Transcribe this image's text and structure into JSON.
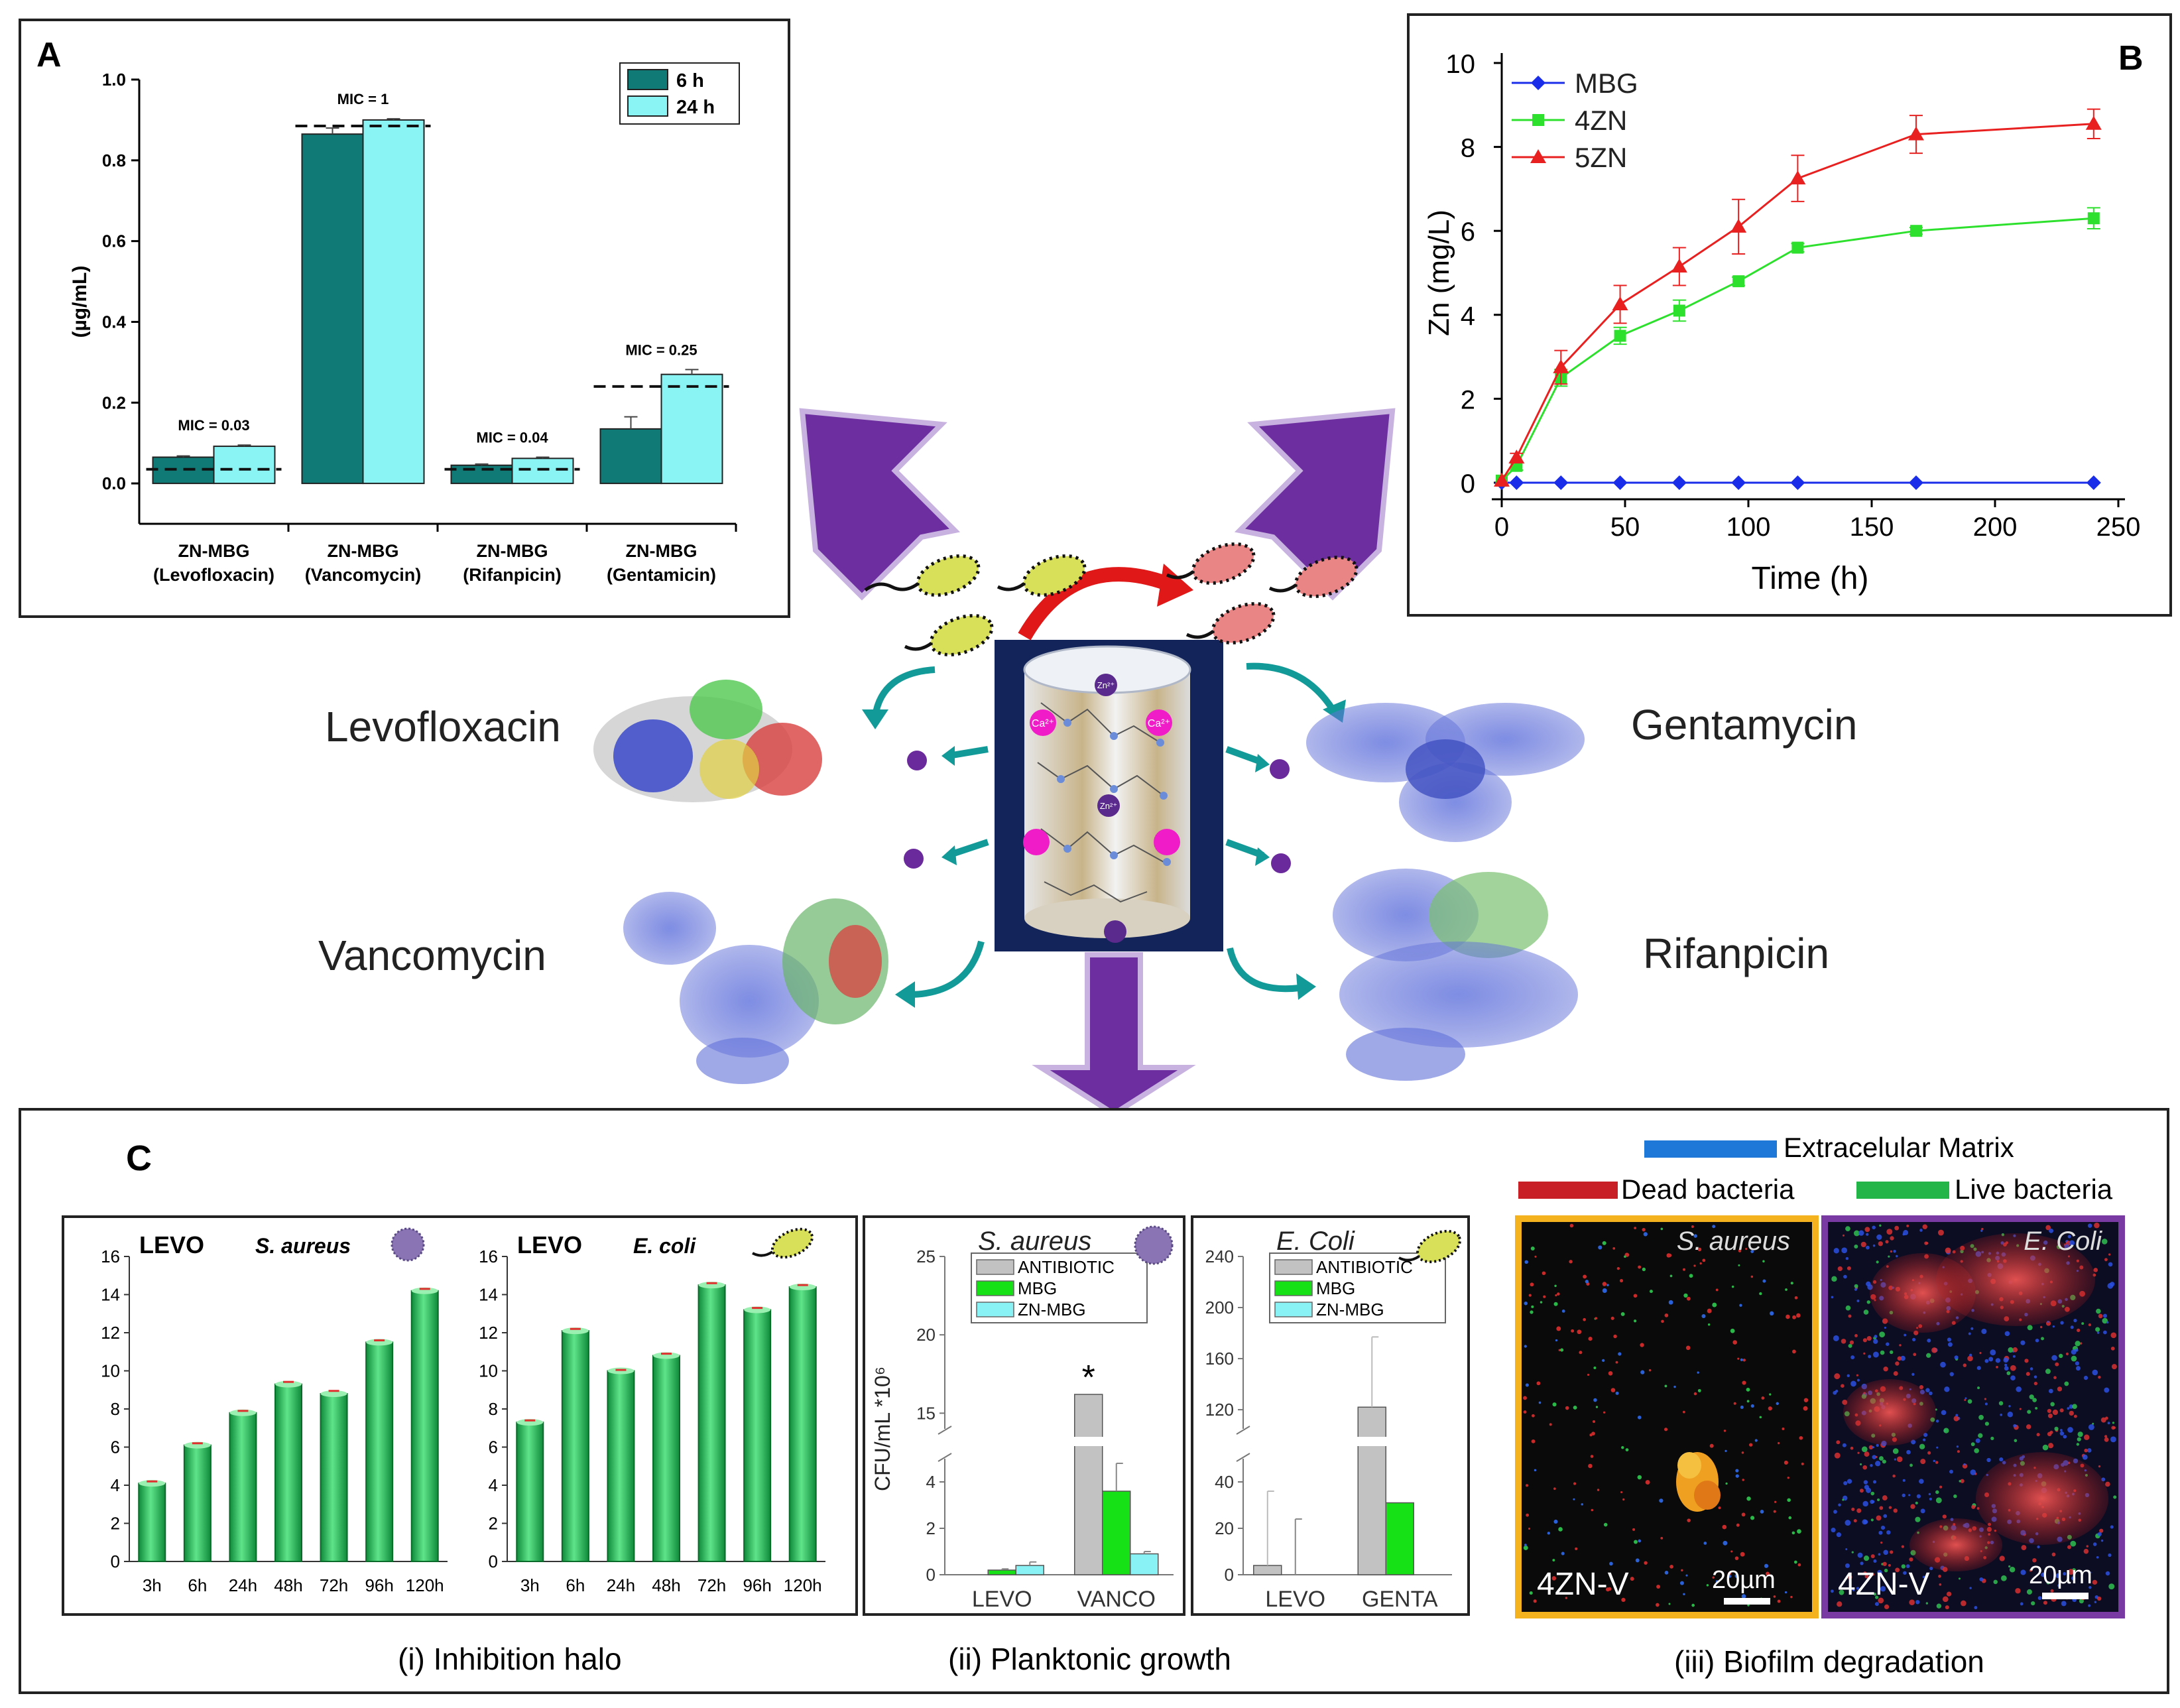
{
  "colors": {
    "teal_dark": "#0f7a76",
    "cyan": "#8af4f4",
    "arrow_purple": "#6d2fa0",
    "teal_arrow": "#129a98",
    "mbg_blue": "#1a2de8",
    "zn4_green": "#2ee02e",
    "zn5_red": "#e82020",
    "bar_green": "#33c85a",
    "antibiotic_gray": "#c2c2c2",
    "mbg_green": "#16e016",
    "znmbg_cyan": "#88f2f5",
    "panel_yellow": "#f3b21e",
    "panel_purple": "#7a3aa4",
    "ecm_blue": "#1e78d8",
    "dead_red": "#c81f26",
    "live_green": "#23b548"
  },
  "labels": {
    "panel_a": "A",
    "panel_b": "B",
    "panel_c": "C",
    "levofloxacin": "Levofloxacin",
    "gentamycin": "Gentamycin",
    "vancomycin": "Vancomycin",
    "rifanpicin": "Rifanpicin",
    "ion_ca": "Ca²⁺",
    "ion_zn": "Zn²⁺",
    "caption_i": "(i) Inhibition halo",
    "caption_ii": "(ii) Planktonic growth",
    "caption_iii": "(iii) Biofilm degradation",
    "legend_ecm": "Extracelular Matrix",
    "legend_dead": "Dead bacteria",
    "legend_live": "Live bacteria",
    "micro_left_title": "S. aureus",
    "micro_right_title": "E. Coli",
    "micro_label": "4ZN-V",
    "scale_bar": "20µm"
  },
  "chart_data": [
    {
      "id": "A",
      "type": "bar",
      "title": "",
      "xlabel": "",
      "ylabel": "(µg/mL)",
      "ylim": [
        -0.1,
        1.0
      ],
      "yticks": [
        "0.0",
        "0.2",
        "0.4",
        "0.6",
        "0.8",
        "1.0"
      ],
      "categories": [
        "ZN-MBG (Levofloxacin)",
        "ZN-MBG (Vancomycin)",
        "ZN-MBG (Rifanpicin)",
        "ZN-MBG (Gentamicin)"
      ],
      "category_lines": [
        [
          "ZN-MBG",
          "(Levofloxacin)"
        ],
        [
          "ZN-MBG",
          "(Vancomycin)"
        ],
        [
          "ZN-MBG",
          "(Rifanpicin)"
        ],
        [
          "ZN-MBG",
          "(Gentamicin)"
        ]
      ],
      "series": [
        {
          "name": "6 h",
          "values": [
            0.065,
            0.865,
            0.045,
            0.135
          ],
          "errors": [
            0.003,
            0.015,
            0.003,
            0.03
          ]
        },
        {
          "name": "24 h",
          "values": [
            0.092,
            0.9,
            0.062,
            0.27
          ],
          "errors": [
            0.003,
            0.003,
            0.003,
            0.012
          ]
        }
      ],
      "mic_values": [
        0.03,
        1,
        0.04,
        0.25
      ],
      "mic_line_levels": [
        0.035,
        0.885,
        0.035,
        0.24
      ],
      "mic_labels": [
        "MIC = 0.03",
        "MIC = 1",
        "MIC = 0.04",
        "MIC = 0.25"
      ],
      "legend_position": "top-right"
    },
    {
      "id": "B",
      "type": "line",
      "title": "",
      "xlabel": "Time (h)",
      "ylabel": "Zn (mg/L)",
      "xlim": [
        0,
        250
      ],
      "ylim": [
        0,
        10
      ],
      "xticks": [
        0,
        50,
        100,
        150,
        200,
        250
      ],
      "yticks": [
        0,
        2,
        4,
        6,
        8,
        10
      ],
      "x": [
        0,
        6,
        24,
        48,
        72,
        96,
        120,
        168,
        240
      ],
      "series": [
        {
          "name": "MBG",
          "values": [
            0,
            0,
            0,
            0,
            0,
            0,
            0,
            0,
            0
          ],
          "errors": [
            0,
            0,
            0,
            0,
            0,
            0,
            0,
            0,
            0
          ]
        },
        {
          "name": "4ZN",
          "values": [
            0.05,
            0.4,
            2.5,
            3.5,
            4.1,
            4.8,
            5.6,
            6.0,
            6.3
          ],
          "errors": [
            0.05,
            0.1,
            0.2,
            0.2,
            0.25,
            0.1,
            0.1,
            0.08,
            0.25
          ]
        },
        {
          "name": "5ZN",
          "values": [
            0.05,
            0.6,
            2.75,
            4.25,
            5.15,
            6.1,
            7.25,
            8.3,
            8.55
          ],
          "errors": [
            0.05,
            0.1,
            0.4,
            0.45,
            0.45,
            0.65,
            0.55,
            0.45,
            0.35
          ]
        }
      ],
      "legend_position": "top-left"
    },
    {
      "id": "C-i-left",
      "type": "bar",
      "title": "LEVO",
      "organism": "S. aureus",
      "ylim": [
        0,
        16
      ],
      "yticks": [
        0,
        2,
        4,
        6,
        8,
        10,
        12,
        14,
        16
      ],
      "categories": [
        "3h",
        "6h",
        "24h",
        "48h",
        "72h",
        "96h",
        "120h"
      ],
      "values": [
        4.1,
        6.1,
        7.8,
        9.3,
        8.8,
        11.5,
        14.2
      ],
      "errors": [
        0.1,
        0.1,
        0.1,
        0.12,
        0.15,
        0.1,
        0.1
      ]
    },
    {
      "id": "C-i-right",
      "type": "bar",
      "title": "LEVO",
      "organism": "E. coli",
      "ylim": [
        0,
        16
      ],
      "yticks": [
        0,
        2,
        4,
        6,
        8,
        10,
        12,
        14,
        16
      ],
      "categories": [
        "3h",
        "6h",
        "24h",
        "48h",
        "72h",
        "96h",
        "120h"
      ],
      "values": [
        7.3,
        12.1,
        10.0,
        10.8,
        14.5,
        13.2,
        14.4
      ],
      "errors": [
        0.1,
        0.1,
        0.05,
        0.1,
        0.1,
        0.1,
        0.1
      ]
    },
    {
      "id": "C-ii-left",
      "type": "bar",
      "title": "S. aureus",
      "ylabel": "CFU/mL  *10⁶",
      "axis_break": true,
      "yticks_lower": [
        "0",
        "2",
        "4"
      ],
      "yticks_upper": [
        "15",
        "20",
        "25"
      ],
      "categories": [
        "LEVO",
        "VANCO"
      ],
      "series": [
        {
          "name": "ANTIBIOTIC",
          "values": [
            0,
            16.2
          ],
          "errors": [
            0,
            0
          ]
        },
        {
          "name": "MBG",
          "values": [
            0.2,
            3.6
          ],
          "errors": [
            0.05,
            1.2
          ]
        },
        {
          "name": "ZN-MBG",
          "values": [
            0.4,
            0.9
          ],
          "errors": [
            0.15,
            0.1
          ]
        }
      ],
      "significance_marker": "*",
      "legend_position": "top"
    },
    {
      "id": "C-ii-right",
      "type": "bar",
      "title": "E. Coli",
      "axis_break": true,
      "yticks_lower": [
        "0",
        "20",
        "40"
      ],
      "yticks_upper": [
        "120",
        "160",
        "200",
        "240"
      ],
      "categories": [
        "LEVO",
        "GENTA"
      ],
      "series": [
        {
          "name": "ANTIBIOTIC",
          "values": [
            4,
            122
          ],
          "errors": [
            32,
            55
          ]
        },
        {
          "name": "MBG",
          "values": [
            0,
            31
          ],
          "errors": [
            24,
            0
          ]
        },
        {
          "name": "ZN-MBG",
          "values": [
            0,
            0
          ],
          "errors": [
            0,
            0
          ]
        }
      ],
      "legend_position": "top"
    }
  ]
}
